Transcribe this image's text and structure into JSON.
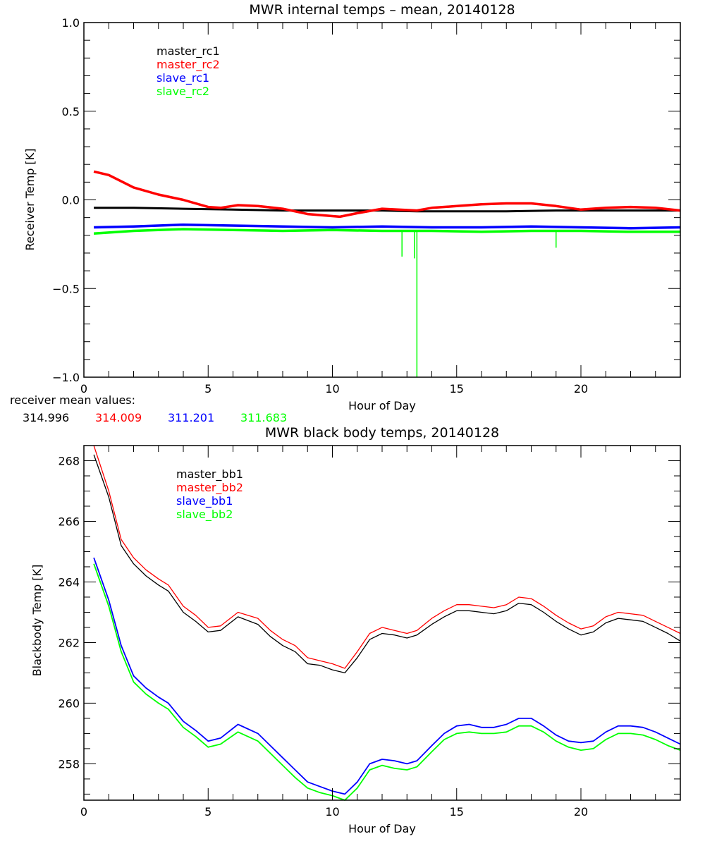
{
  "colors": {
    "black": "#000000",
    "red": "#ff0000",
    "blue": "#0000ff",
    "green": "#00ff00"
  },
  "chart_data": [
    {
      "type": "line",
      "title": "MWR internal temps – mean, 20140128",
      "xlabel": "Hour of Day",
      "ylabel": "Receiver Temp [K]",
      "xlim": [
        0,
        24
      ],
      "ylim": [
        -1.0,
        1.0
      ],
      "xticks": [
        0,
        5,
        10,
        15,
        20
      ],
      "xtick_labels": [
        "0",
        "5",
        "10",
        "15",
        "20"
      ],
      "yticks": [
        -1.0,
        -0.5,
        0.0,
        0.5,
        1.0
      ],
      "ytick_labels": [
        "-1.0",
        "-0.5",
        "0.0",
        "0.5",
        "1.0"
      ],
      "grid": false,
      "legend_position": "top-left",
      "series": [
        {
          "name": "master_rc1",
          "color": "#000000",
          "x": [
            0.4,
            2,
            4,
            6,
            8,
            10,
            12,
            13.4,
            15,
            17,
            19,
            21,
            24
          ],
          "y": [
            -0.045,
            -0.045,
            -0.05,
            -0.055,
            -0.06,
            -0.06,
            -0.06,
            -0.065,
            -0.065,
            -0.065,
            -0.06,
            -0.06,
            -0.06
          ]
        },
        {
          "name": "master_rc2",
          "color": "#ff0000",
          "x": [
            0.4,
            1,
            2,
            3,
            4,
            5,
            5.5,
            6.2,
            7,
            8,
            9,
            10.3,
            11,
            12,
            13.4,
            14,
            15,
            16,
            17,
            18,
            19,
            20,
            21,
            22,
            23,
            24
          ],
          "y": [
            0.16,
            0.14,
            0.07,
            0.03,
            0.0,
            -0.04,
            -0.045,
            -0.03,
            -0.035,
            -0.05,
            -0.08,
            -0.095,
            -0.075,
            -0.05,
            -0.06,
            -0.045,
            -0.035,
            -0.025,
            -0.02,
            -0.02,
            -0.035,
            -0.055,
            -0.045,
            -0.04,
            -0.045,
            -0.06
          ]
        },
        {
          "name": "slave_rc1",
          "color": "#0000ff",
          "x": [
            0.4,
            2,
            4,
            6,
            8,
            10,
            12,
            14,
            16,
            18,
            20,
            22,
            24
          ],
          "y": [
            -0.155,
            -0.15,
            -0.14,
            -0.145,
            -0.15,
            -0.155,
            -0.15,
            -0.155,
            -0.155,
            -0.15,
            -0.155,
            -0.16,
            -0.155
          ]
        },
        {
          "name": "slave_rc2",
          "color": "#00ff00",
          "x": [
            0.4,
            2,
            4,
            6,
            8,
            10,
            12,
            14,
            16,
            18,
            20,
            22,
            24
          ],
          "y": [
            -0.19,
            -0.175,
            -0.165,
            -0.17,
            -0.175,
            -0.17,
            -0.175,
            -0.175,
            -0.18,
            -0.175,
            -0.175,
            -0.18,
            -0.18
          ],
          "spikes": [
            {
              "x": 12.8,
              "y": -0.32
            },
            {
              "x": 13.3,
              "y": -0.33
            },
            {
              "x": 13.4,
              "y": -1.0
            },
            {
              "x": 19.0,
              "y": -0.27
            }
          ]
        }
      ],
      "annotation": {
        "label": "receiver mean values:",
        "values": [
          {
            "text": "314.996",
            "color": "#000000"
          },
          {
            "text": "314.009",
            "color": "#ff0000"
          },
          {
            "text": "311.201",
            "color": "#0000ff"
          },
          {
            "text": "311.683",
            "color": "#00ff00"
          }
        ]
      }
    },
    {
      "type": "line",
      "title": "MWR black body temps, 20140128",
      "xlabel": "Hour of Day",
      "ylabel": "Blackbody Temp [K]",
      "xlim": [
        0,
        24
      ],
      "ylim": [
        256.8,
        268.5
      ],
      "xticks": [
        0,
        5,
        10,
        15,
        20
      ],
      "xtick_labels": [
        "0",
        "5",
        "10",
        "15",
        "20"
      ],
      "yticks": [
        258,
        260,
        262,
        264,
        266,
        268
      ],
      "ytick_labels": [
        "258",
        "260",
        "262",
        "264",
        "266",
        "268"
      ],
      "grid": false,
      "legend_position": "top-left",
      "series": [
        {
          "name": "master_bb1",
          "color": "#000000",
          "x": [
            0.4,
            1,
            1.5,
            2,
            2.5,
            3,
            3.4,
            4,
            4.5,
            5,
            5.5,
            6.2,
            7,
            7.5,
            8,
            8.5,
            9,
            9.5,
            10,
            10.5,
            11,
            11.5,
            12,
            12.5,
            13,
            13.4,
            14,
            14.5,
            15,
            15.5,
            16,
            16.5,
            17,
            17.5,
            18,
            18.5,
            19,
            19.5,
            20,
            20.5,
            21,
            21.5,
            22,
            22.5,
            23,
            23.5,
            24
          ],
          "y": [
            268.2,
            266.8,
            265.2,
            264.6,
            264.2,
            263.9,
            263.7,
            263.0,
            262.7,
            262.35,
            262.4,
            262.85,
            262.6,
            262.2,
            261.9,
            261.7,
            261.3,
            261.25,
            261.1,
            261.0,
            261.5,
            262.1,
            262.3,
            262.25,
            262.15,
            262.25,
            262.6,
            262.85,
            263.05,
            263.05,
            263.0,
            262.95,
            263.05,
            263.3,
            263.25,
            263.0,
            262.7,
            262.45,
            262.25,
            262.35,
            262.65,
            262.8,
            262.75,
            262.7,
            262.5,
            262.3,
            262.05
          ]
        },
        {
          "name": "master_bb2",
          "color": "#ff0000",
          "x": [
            0.4,
            1,
            1.5,
            2,
            2.5,
            3,
            3.4,
            4,
            4.5,
            5,
            5.5,
            6.2,
            7,
            7.5,
            8,
            8.5,
            9,
            9.5,
            10,
            10.5,
            11,
            11.5,
            12,
            12.5,
            13,
            13.4,
            14,
            14.5,
            15,
            15.5,
            16,
            16.5,
            17,
            17.5,
            18,
            18.5,
            19,
            19.5,
            20,
            20.5,
            21,
            21.5,
            22,
            22.5,
            23,
            23.5,
            24
          ],
          "y": [
            268.5,
            267.0,
            265.4,
            264.8,
            264.4,
            264.1,
            263.9,
            263.2,
            262.9,
            262.5,
            262.55,
            263.0,
            262.8,
            262.4,
            262.1,
            261.9,
            261.5,
            261.4,
            261.3,
            261.15,
            261.7,
            262.3,
            262.5,
            262.4,
            262.3,
            262.4,
            262.8,
            263.05,
            263.25,
            263.25,
            263.2,
            263.15,
            263.25,
            263.5,
            263.45,
            263.2,
            262.9,
            262.65,
            262.45,
            262.55,
            262.85,
            263.0,
            262.95,
            262.9,
            262.7,
            262.5,
            262.3
          ]
        },
        {
          "name": "slave_bb1",
          "color": "#0000ff",
          "x": [
            0.4,
            1,
            1.5,
            2,
            2.5,
            3,
            3.4,
            4,
            4.5,
            5,
            5.5,
            6.2,
            7,
            7.5,
            8,
            8.5,
            9,
            9.5,
            10,
            10.5,
            11,
            11.5,
            12,
            12.5,
            13,
            13.4,
            14,
            14.5,
            15,
            15.5,
            16,
            16.5,
            17,
            17.5,
            18,
            18.5,
            19,
            19.5,
            20,
            20.5,
            21,
            21.5,
            22,
            22.5,
            23,
            23.5,
            24
          ],
          "y": [
            264.8,
            263.4,
            261.9,
            260.9,
            260.5,
            260.2,
            260.0,
            259.4,
            259.1,
            258.75,
            258.85,
            259.3,
            259.0,
            258.6,
            258.2,
            257.8,
            257.4,
            257.25,
            257.1,
            257.0,
            257.4,
            258.0,
            258.15,
            258.1,
            258.0,
            258.1,
            258.6,
            259.0,
            259.25,
            259.3,
            259.2,
            259.2,
            259.3,
            259.5,
            259.5,
            259.25,
            258.95,
            258.75,
            258.7,
            258.75,
            259.05,
            259.25,
            259.25,
            259.2,
            259.05,
            258.85,
            258.65
          ]
        },
        {
          "name": "slave_bb2",
          "color": "#00ff00",
          "x": [
            0.4,
            1,
            1.5,
            2,
            2.5,
            3,
            3.4,
            4,
            4.5,
            5,
            5.5,
            6.2,
            7,
            7.5,
            8,
            8.5,
            9,
            9.5,
            10,
            10.5,
            11,
            11.5,
            12,
            12.5,
            13,
            13.4,
            14,
            14.5,
            15,
            15.5,
            16,
            16.5,
            17,
            17.5,
            18,
            18.5,
            19,
            19.5,
            20,
            20.5,
            21,
            21.5,
            22,
            22.5,
            23,
            23.5,
            24
          ],
          "y": [
            264.6,
            263.2,
            261.7,
            260.7,
            260.3,
            260.0,
            259.8,
            259.2,
            258.9,
            258.55,
            258.65,
            259.05,
            258.75,
            258.35,
            257.95,
            257.55,
            257.2,
            257.05,
            256.95,
            256.8,
            257.2,
            257.8,
            257.95,
            257.85,
            257.8,
            257.9,
            258.4,
            258.8,
            259.0,
            259.05,
            259.0,
            259.0,
            259.05,
            259.25,
            259.25,
            259.05,
            258.75,
            258.55,
            258.45,
            258.5,
            258.8,
            259.0,
            259.0,
            258.95,
            258.8,
            258.6,
            258.45
          ]
        }
      ]
    }
  ]
}
